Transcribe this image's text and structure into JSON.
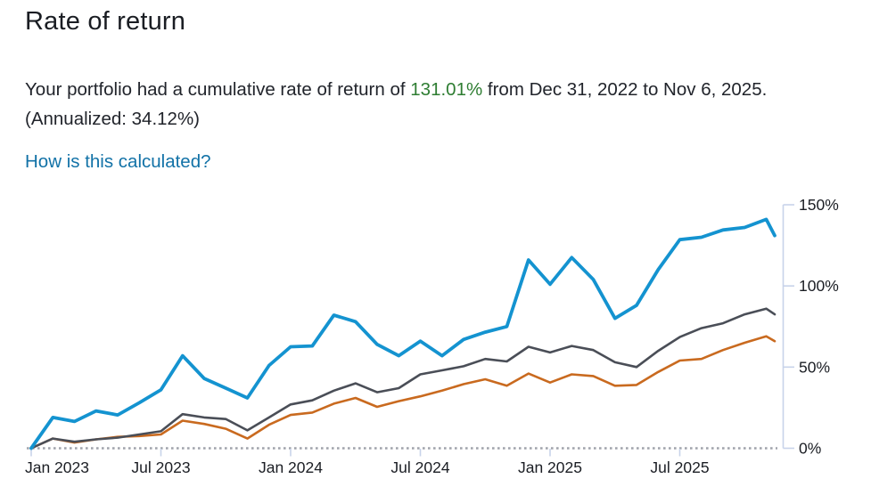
{
  "header": {
    "title": "Rate of return"
  },
  "summary": {
    "prefix": "Your portfolio had a cumulative rate of return of ",
    "highlight": "131.01%",
    "suffix": " from Dec 31, 2022 to Nov 6, 2025. (Annualized: 34.12%)",
    "highlight_color": "#2e7d32"
  },
  "link": {
    "label": "How is this calculated?",
    "color": "#1272a7"
  },
  "chart_data": {
    "type": "line",
    "title": "",
    "xlabel": "",
    "ylabel": "",
    "sampling": "monthly from Dec 31, 2022 (index 0) through Oct 31, 2025, plus final point Nov 6, 2025",
    "x_axis": {
      "start_label": "Dec 31, 2022",
      "end_label": "Nov 6, 2025",
      "ticks": [
        {
          "month_index": 0,
          "label": "Jan 2023"
        },
        {
          "month_index": 6,
          "label": "Jul 2023"
        },
        {
          "month_index": 12,
          "label": "Jan 2024"
        },
        {
          "month_index": 18,
          "label": "Jul 2024"
        },
        {
          "month_index": 24,
          "label": "Jan 2025"
        },
        {
          "month_index": 30,
          "label": "Jul 2025"
        }
      ]
    },
    "y_axis": {
      "unit": "percent",
      "position": "right",
      "range": [
        0,
        150
      ],
      "ticks": [
        {
          "value": 0,
          "label": "0%"
        },
        {
          "value": 50,
          "label": "50%"
        },
        {
          "value": 100,
          "label": "100%"
        },
        {
          "value": 150,
          "label": "150%"
        }
      ]
    },
    "zero_baseline": {
      "style": "dotted",
      "color": "#a0a4ab"
    },
    "grid": false,
    "legend": "none",
    "series": [
      {
        "name": "portfolio",
        "color": "#1493d0",
        "stroke_width": 3.8,
        "values": [
          0,
          19,
          16.5,
          23,
          20.5,
          28,
          36,
          57,
          43,
          37,
          31,
          51,
          62.5,
          63,
          82,
          78,
          64,
          57,
          66,
          57,
          67,
          71.5,
          75,
          116,
          101,
          117.5,
          104,
          80,
          88,
          110,
          128.5,
          130,
          134.5,
          136,
          141,
          131.01
        ]
      },
      {
        "name": "benchmark-dark-gray",
        "color": "#4a4e57",
        "stroke_width": 2.6,
        "values": [
          0,
          6,
          4,
          5.5,
          6.5,
          8.5,
          10.5,
          21,
          19,
          18,
          11,
          19,
          27,
          29.5,
          35.5,
          40,
          34.5,
          37,
          45.5,
          48,
          50.5,
          55,
          53.5,
          62.5,
          59,
          63,
          60.5,
          53,
          50,
          60,
          68.5,
          74,
          77,
          82.5,
          86,
          82.5
        ]
      },
      {
        "name": "benchmark-orange",
        "color": "#c96a1f",
        "stroke_width": 2.6,
        "values": [
          0,
          6,
          3.5,
          5.5,
          7,
          7.5,
          8.5,
          17,
          15,
          12,
          6,
          14.5,
          20.5,
          22,
          27.5,
          31,
          25.5,
          29,
          32,
          35.5,
          39.5,
          42.5,
          38.5,
          46,
          40.5,
          45.5,
          44.5,
          38.5,
          39,
          47,
          54,
          55,
          60.5,
          65,
          69,
          66
        ]
      }
    ]
  }
}
